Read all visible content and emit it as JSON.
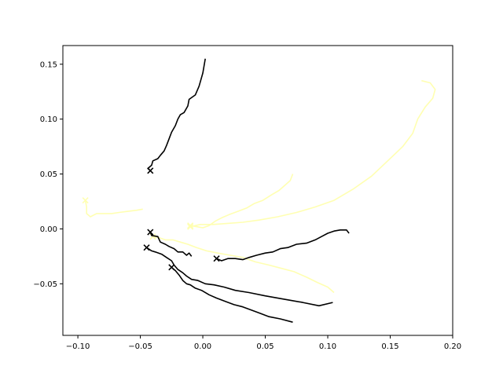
{
  "chart_data": {
    "type": "line",
    "title": "",
    "xlabel": "",
    "ylabel": "",
    "xlim": [
      -0.112,
      0.2
    ],
    "ylim": [
      -0.097,
      0.167
    ],
    "grid": false,
    "xticks": [
      -0.1,
      -0.05,
      0.0,
      0.05,
      0.1,
      0.15,
      0.2
    ],
    "xtick_labels": [
      "−0.10",
      "−0.05",
      "0.00",
      "0.05",
      "0.10",
      "0.15",
      "0.20"
    ],
    "yticks": [
      -0.05,
      0.0,
      0.05,
      0.1,
      0.15
    ],
    "ytick_labels": [
      "−0.05",
      "0.00",
      "0.05",
      "0.10",
      "0.15"
    ],
    "colors": {
      "dark": "#000000",
      "light": "#ffffb2"
    },
    "series": [
      {
        "color": "dark",
        "marker": "x",
        "points": [
          [
            -0.042,
            0.053
          ],
          [
            -0.044,
            0.055
          ],
          [
            -0.041,
            0.058
          ],
          [
            -0.04,
            0.062
          ],
          [
            -0.036,
            0.064
          ],
          [
            -0.034,
            0.067
          ],
          [
            -0.031,
            0.071
          ],
          [
            -0.029,
            0.076
          ],
          [
            -0.027,
            0.082
          ],
          [
            -0.025,
            0.088
          ],
          [
            -0.022,
            0.094
          ],
          [
            -0.02,
            0.1
          ],
          [
            -0.018,
            0.104
          ],
          [
            -0.015,
            0.106
          ],
          [
            -0.012,
            0.112
          ],
          [
            -0.011,
            0.118
          ],
          [
            -0.006,
            0.122
          ],
          [
            -0.003,
            0.13
          ],
          [
            0.0,
            0.142
          ],
          [
            0.002,
            0.155
          ]
        ]
      },
      {
        "color": "dark",
        "marker": "x",
        "points": [
          [
            -0.042,
            -0.003
          ],
          [
            -0.041,
            -0.006
          ],
          [
            -0.036,
            -0.007
          ],
          [
            -0.034,
            -0.012
          ],
          [
            -0.03,
            -0.014
          ],
          [
            -0.027,
            -0.016
          ],
          [
            -0.023,
            -0.018
          ],
          [
            -0.02,
            -0.021
          ],
          [
            -0.016,
            -0.021
          ],
          [
            -0.013,
            -0.024
          ],
          [
            -0.011,
            -0.022
          ],
          [
            -0.009,
            -0.025
          ]
        ]
      },
      {
        "color": "dark",
        "marker": "x",
        "points": [
          [
            -0.045,
            -0.017
          ],
          [
            -0.041,
            -0.02
          ],
          [
            -0.038,
            -0.021
          ],
          [
            -0.033,
            -0.023
          ],
          [
            -0.029,
            -0.026
          ],
          [
            -0.025,
            -0.029
          ],
          [
            -0.023,
            -0.033
          ],
          [
            -0.02,
            -0.037
          ],
          [
            -0.016,
            -0.04
          ],
          [
            -0.013,
            -0.043
          ],
          [
            -0.009,
            -0.046
          ],
          [
            -0.004,
            -0.047
          ],
          [
            0.002,
            -0.05
          ],
          [
            0.009,
            -0.051
          ],
          [
            0.017,
            -0.053
          ],
          [
            0.026,
            -0.056
          ],
          [
            0.037,
            -0.058
          ],
          [
            0.05,
            -0.061
          ],
          [
            0.065,
            -0.064
          ],
          [
            0.08,
            -0.067
          ],
          [
            0.093,
            -0.07
          ],
          [
            0.104,
            -0.067
          ]
        ]
      },
      {
        "color": "dark",
        "marker": "x",
        "points": [
          [
            -0.025,
            -0.035
          ],
          [
            -0.022,
            -0.038
          ],
          [
            -0.019,
            -0.042
          ],
          [
            -0.016,
            -0.047
          ],
          [
            -0.013,
            -0.05
          ],
          [
            -0.01,
            -0.051
          ],
          [
            -0.006,
            -0.054
          ],
          [
            -0.001,
            -0.056
          ],
          [
            0.005,
            -0.06
          ],
          [
            0.011,
            -0.063
          ],
          [
            0.018,
            -0.066
          ],
          [
            0.025,
            -0.069
          ],
          [
            0.032,
            -0.071
          ],
          [
            0.039,
            -0.074
          ],
          [
            0.046,
            -0.077
          ],
          [
            0.053,
            -0.08
          ],
          [
            0.062,
            -0.082
          ],
          [
            0.072,
            -0.085
          ]
        ]
      },
      {
        "color": "dark",
        "marker": "x",
        "points": [
          [
            0.011,
            -0.027
          ],
          [
            0.015,
            -0.029
          ],
          [
            0.02,
            -0.027
          ],
          [
            0.026,
            -0.027
          ],
          [
            0.032,
            -0.028
          ],
          [
            0.037,
            -0.026
          ],
          [
            0.043,
            -0.024
          ],
          [
            0.05,
            -0.022
          ],
          [
            0.056,
            -0.021
          ],
          [
            0.062,
            -0.018
          ],
          [
            0.068,
            -0.017
          ],
          [
            0.075,
            -0.014
          ],
          [
            0.083,
            -0.013
          ],
          [
            0.09,
            -0.01
          ],
          [
            0.095,
            -0.007
          ],
          [
            0.1,
            -0.004
          ],
          [
            0.105,
            -0.002
          ],
          [
            0.11,
            -0.001
          ],
          [
            0.115,
            -0.001
          ],
          [
            0.117,
            -0.004
          ]
        ]
      },
      {
        "color": "light",
        "marker": "x",
        "points": [
          [
            -0.094,
            0.026
          ],
          [
            -0.093,
            0.02
          ],
          [
            -0.093,
            0.014
          ],
          [
            -0.09,
            0.011
          ],
          [
            -0.085,
            0.014
          ],
          [
            -0.08,
            0.014
          ],
          [
            -0.073,
            0.014
          ],
          [
            -0.067,
            0.015
          ],
          [
            -0.06,
            0.016
          ],
          [
            -0.053,
            0.017
          ],
          [
            -0.048,
            0.018
          ]
        ]
      },
      {
        "color": "light",
        "marker": "x",
        "points": [
          [
            -0.04,
            -0.007
          ],
          [
            -0.035,
            -0.008
          ],
          [
            -0.03,
            -0.01
          ],
          [
            -0.024,
            -0.01
          ],
          [
            -0.018,
            -0.012
          ],
          [
            -0.012,
            -0.014
          ],
          [
            -0.005,
            -0.017
          ],
          [
            0.003,
            -0.02
          ],
          [
            0.012,
            -0.022
          ],
          [
            0.022,
            -0.024
          ],
          [
            0.032,
            -0.026
          ],
          [
            0.042,
            -0.03
          ],
          [
            0.053,
            -0.033
          ],
          [
            0.063,
            -0.036
          ],
          [
            0.073,
            -0.039
          ],
          [
            0.083,
            -0.044
          ],
          [
            0.092,
            -0.049
          ],
          [
            0.1,
            -0.053
          ],
          [
            0.105,
            -0.058
          ]
        ]
      },
      {
        "color": "light",
        "marker": "x",
        "points": [
          [
            -0.01,
            0.003
          ],
          [
            -0.005,
            0.002
          ],
          [
            0.0,
            0.001
          ],
          [
            0.005,
            0.003
          ],
          [
            0.01,
            0.007
          ],
          [
            0.015,
            0.01
          ],
          [
            0.021,
            0.013
          ],
          [
            0.028,
            0.016
          ],
          [
            0.035,
            0.019
          ],
          [
            0.041,
            0.023
          ],
          [
            0.048,
            0.026
          ],
          [
            0.055,
            0.031
          ],
          [
            0.061,
            0.035
          ],
          [
            0.065,
            0.039
          ],
          [
            0.07,
            0.044
          ],
          [
            0.072,
            0.05
          ]
        ]
      },
      {
        "color": "light",
        "marker": "x",
        "points": [
          [
            -0.01,
            0.002
          ],
          [
            -0.002,
            0.004
          ],
          [
            0.008,
            0.004
          ],
          [
            0.02,
            0.005
          ],
          [
            0.032,
            0.006
          ],
          [
            0.045,
            0.008
          ],
          [
            0.06,
            0.011
          ],
          [
            0.075,
            0.015
          ],
          [
            0.09,
            0.02
          ],
          [
            0.105,
            0.026
          ],
          [
            0.12,
            0.036
          ],
          [
            0.135,
            0.048
          ],
          [
            0.148,
            0.062
          ],
          [
            0.16,
            0.075
          ],
          [
            0.168,
            0.087
          ],
          [
            0.172,
            0.1
          ],
          [
            0.178,
            0.111
          ],
          [
            0.184,
            0.119
          ],
          [
            0.186,
            0.127
          ],
          [
            0.182,
            0.133
          ],
          [
            0.175,
            0.135
          ]
        ]
      }
    ]
  }
}
